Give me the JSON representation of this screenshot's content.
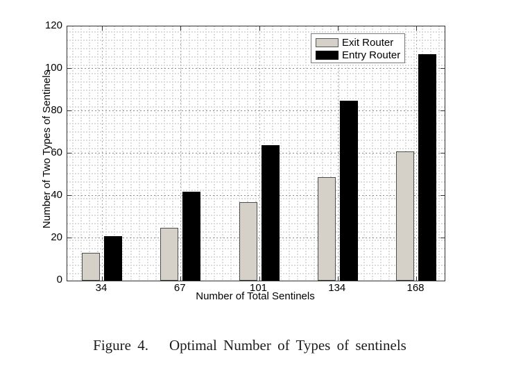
{
  "figure": {
    "caption_label": "Figure 4.",
    "caption_text": "Optimal Number of Types of sentinels"
  },
  "chart_data": {
    "type": "bar",
    "title": "",
    "xlabel": "Number of Total Sentinels",
    "ylabel": "Number of Two Types of Sentinels",
    "categories": [
      "34",
      "67",
      "101",
      "134",
      "168"
    ],
    "series": [
      {
        "name": "Exit Router",
        "color": "#d5d1c9",
        "values": [
          13,
          25,
          37,
          49,
          61
        ]
      },
      {
        "name": "Entry Router",
        "color": "#000000",
        "values": [
          21,
          42,
          64,
          85,
          107
        ]
      }
    ],
    "ylim": [
      0,
      120
    ],
    "yticks": [
      0,
      20,
      40,
      60,
      80,
      100,
      120
    ],
    "grid": "dotted minor mesh with dashed major gridlines",
    "legend_position": "top-right-inside",
    "plot_border_color": "#2f2f2f"
  }
}
